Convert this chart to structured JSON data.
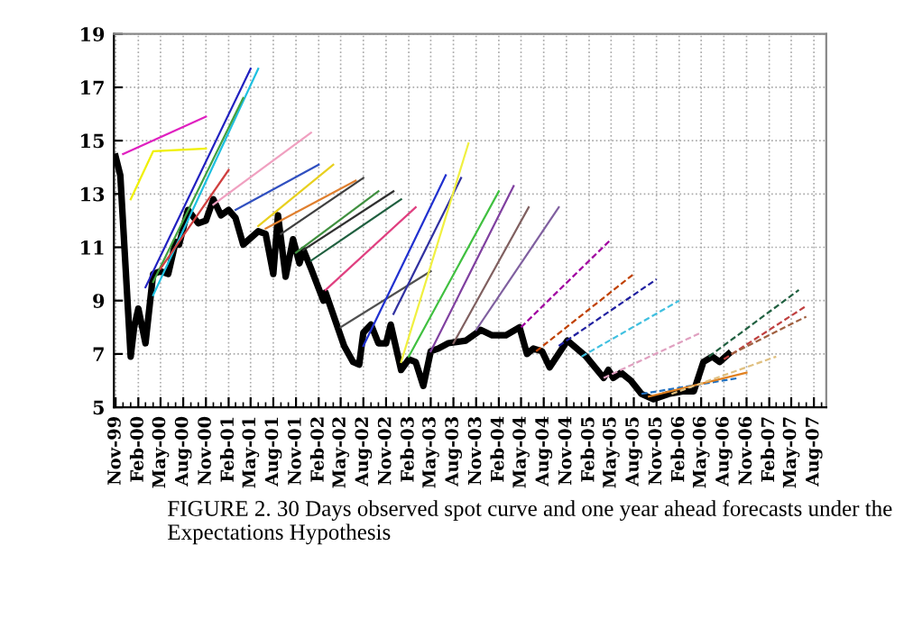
{
  "chart_data": {
    "type": "line",
    "annotations": [
      "FIGURE 2. 30 Days observed spot curve and one year ahead forecasts under the Expectations Hypothesis"
    ],
    "xlim": [
      "1999-10-25",
      "2007-09-20"
    ],
    "xticks": [
      {
        "value": "1999-11",
        "label": "Nov-99"
      },
      {
        "value": "2000-02",
        "label": "Feb-00"
      },
      {
        "value": "2000-05",
        "label": "May-00"
      },
      {
        "value": "2000-08",
        "label": "Aug-00"
      },
      {
        "value": "2000-11",
        "label": "Nov-00"
      },
      {
        "value": "2001-02",
        "label": "Feb-01"
      },
      {
        "value": "2001-05",
        "label": "May-01"
      },
      {
        "value": "2001-08",
        "label": "Aug-01"
      },
      {
        "value": "2001-11",
        "label": "Nov-01"
      },
      {
        "value": "2002-02",
        "label": "Feb-02"
      },
      {
        "value": "2002-05",
        "label": "May-02"
      },
      {
        "value": "2002-08",
        "label": "Aug-02"
      },
      {
        "value": "2002-11",
        "label": "Nov-02"
      },
      {
        "value": "2003-02",
        "label": "Feb-03"
      },
      {
        "value": "2003-05",
        "label": "May-03"
      },
      {
        "value": "2003-08",
        "label": "Aug-03"
      },
      {
        "value": "2003-11",
        "label": "Nov-03"
      },
      {
        "value": "2004-02",
        "label": "Feb-04"
      },
      {
        "value": "2004-05",
        "label": "May-04"
      },
      {
        "value": "2004-08",
        "label": "Aug-04"
      },
      {
        "value": "2004-11",
        "label": "Nov-04"
      },
      {
        "value": "2005-02",
        "label": "Feb-05"
      },
      {
        "value": "2005-05",
        "label": "May-05"
      },
      {
        "value": "2005-08",
        "label": "Aug-05"
      },
      {
        "value": "2005-11",
        "label": "Nov-05"
      },
      {
        "value": "2006-02",
        "label": "Feb-06"
      },
      {
        "value": "2006-05",
        "label": "May-06"
      },
      {
        "value": "2006-08",
        "label": "Aug-06"
      },
      {
        "value": "2006-11",
        "label": "Nov-06"
      },
      {
        "value": "2007-02",
        "label": "Feb-07"
      },
      {
        "value": "2007-05",
        "label": "May-07"
      },
      {
        "value": "2007-08",
        "label": "Aug-07"
      }
    ],
    "ylim": [
      5,
      19
    ],
    "yticks": [
      5,
      7,
      9,
      11,
      13,
      15,
      17,
      19
    ],
    "grid": true,
    "legend": false,
    "marker": "none",
    "series": [
      {
        "color": "#e020c0",
        "line_style": "solid",
        "x": [
          "1999-12",
          "2000-11"
        ],
        "values": [
          14.5,
          15.9
        ]
      },
      {
        "color": "#f0f000",
        "line_style": "solid",
        "x": [
          "2000-01",
          "2000-04",
          "2000-11"
        ],
        "values": [
          12.8,
          14.6,
          14.7
        ]
      },
      {
        "color": "#2020c0",
        "line_style": "solid",
        "x": [
          "2000-03",
          "2001-05"
        ],
        "values": [
          9.5,
          17.7
        ]
      },
      {
        "color": "#20c0e0",
        "line_style": "solid",
        "x": [
          "2000-04",
          "2001-06"
        ],
        "values": [
          9.2,
          17.7
        ]
      },
      {
        "color": "#40a040",
        "line_style": "solid",
        "x": [
          "2000-04",
          "2001-04"
        ],
        "values": [
          9.7,
          16.6
        ]
      },
      {
        "color": "#d04040",
        "line_style": "solid",
        "x": [
          "2000-05",
          "2001-02"
        ],
        "values": [
          10.2,
          13.9
        ]
      },
      {
        "color": "#f0a0c0",
        "line_style": "solid",
        "x": [
          "2000-12",
          "2002-01"
        ],
        "values": [
          12.6,
          15.3
        ]
      },
      {
        "color": "#3050c0",
        "line_style": "solid",
        "x": [
          "2001-03",
          "2002-02"
        ],
        "values": [
          12.4,
          14.1
        ]
      },
      {
        "color": "#e8d020",
        "line_style": "solid",
        "x": [
          "2001-06",
          "2002-04"
        ],
        "values": [
          11.8,
          14.1
        ]
      },
      {
        "color": "#e08030",
        "line_style": "solid",
        "x": [
          "2001-07",
          "2002-07"
        ],
        "values": [
          11.7,
          13.5
        ]
      },
      {
        "color": "#404040",
        "line_style": "solid",
        "x": [
          "2001-09",
          "2002-08"
        ],
        "values": [
          11.5,
          13.6
        ]
      },
      {
        "color": "#409040",
        "line_style": "solid",
        "x": [
          "2001-11",
          "2002-10"
        ],
        "values": [
          10.8,
          13.1
        ]
      },
      {
        "color": "#303030",
        "line_style": "solid",
        "x": [
          "2001-12",
          "2002-12"
        ],
        "values": [
          10.9,
          13.1
        ]
      },
      {
        "color": "#206040",
        "line_style": "solid",
        "x": [
          "2002-01",
          "2003-01"
        ],
        "values": [
          10.5,
          12.8
        ]
      },
      {
        "color": "#e04080",
        "line_style": "solid",
        "x": [
          "2002-03",
          "2003-03"
        ],
        "values": [
          9.4,
          12.5
        ]
      },
      {
        "color": "#505050",
        "line_style": "solid",
        "x": [
          "2002-05",
          "2003-05"
        ],
        "values": [
          8.0,
          10.1
        ]
      },
      {
        "color": "#2030d0",
        "line_style": "solid",
        "x": [
          "2002-08",
          "2003-07"
        ],
        "values": [
          7.3,
          13.7
        ]
      },
      {
        "color": "#3030a0",
        "line_style": "solid",
        "x": [
          "2002-12",
          "2003-09"
        ],
        "values": [
          8.5,
          13.6
        ]
      },
      {
        "color": "#f0f040",
        "line_style": "solid",
        "x": [
          "2003-01",
          "2003-10"
        ],
        "values": [
          6.7,
          14.9
        ]
      },
      {
        "color": "#40c040",
        "line_style": "solid",
        "x": [
          "2003-02",
          "2004-02"
        ],
        "values": [
          6.9,
          13.1
        ]
      },
      {
        "color": "#8040a0",
        "line_style": "solid",
        "x": [
          "2003-05",
          "2004-04"
        ],
        "values": [
          7.1,
          13.3
        ]
      },
      {
        "color": "#806060",
        "line_style": "solid",
        "x": [
          "2003-08",
          "2004-06"
        ],
        "values": [
          7.4,
          12.5
        ]
      },
      {
        "color": "#8060a0",
        "line_style": "solid",
        "x": [
          "2003-11",
          "2004-10"
        ],
        "values": [
          7.9,
          12.5
        ]
      },
      {
        "color": "#a000a0",
        "line_style": "dashed",
        "x": [
          "2004-05",
          "2005-05"
        ],
        "values": [
          8.0,
          11.3
        ]
      },
      {
        "color": "#c04000",
        "line_style": "dashed",
        "x": [
          "2004-07",
          "2005-08"
        ],
        "values": [
          7.1,
          10.0
        ]
      },
      {
        "color": "#2020a0",
        "line_style": "dashed",
        "x": [
          "2004-10",
          "2005-11"
        ],
        "values": [
          7.3,
          9.8
        ]
      },
      {
        "color": "#40c0e0",
        "line_style": "dashed",
        "x": [
          "2005-01",
          "2006-02"
        ],
        "values": [
          6.9,
          9.0
        ]
      },
      {
        "color": "#e0a0c0",
        "line_style": "dashed",
        "x": [
          "2005-04",
          "2006-05"
        ],
        "values": [
          6.1,
          7.8
        ]
      },
      {
        "color": "#2070c0",
        "line_style": "dashed",
        "x": [
          "2005-09",
          "2006-10"
        ],
        "values": [
          5.5,
          6.1
        ]
      },
      {
        "color": "#e08020",
        "line_style": "solid",
        "x": [
          "2005-10",
          "2006-11"
        ],
        "values": [
          5.4,
          6.3
        ]
      },
      {
        "color": "#e0c080",
        "line_style": "dashed",
        "x": [
          "2006-01",
          "2007-03"
        ],
        "values": [
          5.5,
          6.9
        ]
      },
      {
        "color": "#206040",
        "line_style": "dashed",
        "x": [
          "2006-06",
          "2007-06"
        ],
        "values": [
          6.9,
          9.4
        ]
      },
      {
        "color": "#c04040",
        "line_style": "dashed",
        "x": [
          "2006-08",
          "2007-07"
        ],
        "values": [
          6.8,
          8.8
        ]
      },
      {
        "color": "#a06040",
        "line_style": "dashed",
        "x": [
          "2006-09",
          "2007-07"
        ],
        "values": [
          7.0,
          8.4
        ]
      },
      {
        "color": "#000000",
        "line_style": "solid",
        "x": [
          "1999-11-01",
          "1999-11-20",
          "2000-01-01",
          "2000-01-15",
          "2000-02-01",
          "2000-03-01",
          "2000-04-01",
          "2000-05-01",
          "2000-06-01",
          "2000-07-01",
          "2000-07-15",
          "2000-08-20",
          "2000-10-01",
          "2000-11-01",
          "2000-12-01",
          "2001-01-01",
          "2001-02-01",
          "2001-03-01",
          "2001-04-01",
          "2001-06-01",
          "2001-07-01",
          "2001-08-01",
          "2001-08-20",
          "2001-09-20",
          "2001-10-20",
          "2001-11-15",
          "2001-12-01",
          "2002-01-01",
          "2002-02-20",
          "2002-03-01",
          "2002-05-15",
          "2002-06-20",
          "2002-07-15",
          "2002-08-01",
          "2002-09-01",
          "2002-10-01",
          "2002-11-01",
          "2002-11-20",
          "2003-01-01",
          "2003-02-01",
          "2003-03-01",
          "2003-04-01",
          "2003-05-01",
          "2003-06-01",
          "2003-07-10",
          "2003-09-20",
          "2003-11-20",
          "2004-01-05",
          "2004-03-01",
          "2004-04-25",
          "2004-05-25",
          "2004-06-20",
          "2004-07-25",
          "2004-08-25",
          "2004-11-05",
          "2005-01-20",
          "2005-04-01",
          "2005-04-20",
          "2005-05-10",
          "2005-06-10",
          "2005-07-20",
          "2005-09-01",
          "2005-10-20",
          "2005-12-20",
          "2006-02-20",
          "2006-04-01",
          "2006-05-10",
          "2006-06-15",
          "2006-07-15",
          "2006-08-20"
        ],
        "values": [
          14.4,
          13.7,
          6.9,
          8.0,
          8.7,
          7.4,
          10.0,
          10.1,
          10.0,
          11.2,
          11.1,
          12.4,
          11.9,
          12.0,
          12.8,
          12.2,
          12.4,
          12.1,
          11.1,
          11.6,
          11.5,
          10.0,
          12.2,
          9.9,
          11.3,
          10.4,
          10.9,
          10.2,
          9.0,
          9.3,
          7.3,
          6.7,
          6.6,
          7.8,
          8.1,
          7.4,
          7.4,
          8.1,
          6.4,
          6.8,
          6.7,
          5.8,
          7.1,
          7.2,
          7.4,
          7.5,
          7.9,
          7.7,
          7.7,
          8.0,
          7.0,
          7.2,
          7.1,
          6.5,
          7.5,
          6.9,
          6.1,
          6.4,
          6.1,
          6.3,
          6.0,
          5.5,
          5.3,
          5.5,
          5.6,
          5.6,
          6.7,
          6.9,
          6.7,
          7.0
        ]
      }
    ]
  }
}
